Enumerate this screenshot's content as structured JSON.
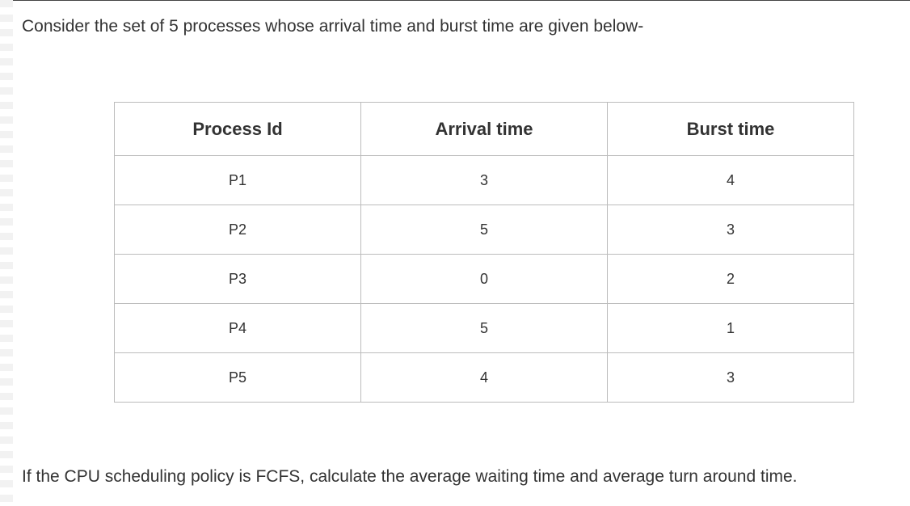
{
  "intro_text": "Consider the set of 5 processes whose arrival time and burst time are given below-",
  "table": {
    "headers": [
      "Process Id",
      "Arrival time",
      "Burst time"
    ],
    "rows": [
      [
        "P1",
        "3",
        "4"
      ],
      [
        "P2",
        "5",
        "3"
      ],
      [
        "P3",
        "0",
        "2"
      ],
      [
        "P4",
        "5",
        "1"
      ],
      [
        "P5",
        "4",
        "3"
      ]
    ]
  },
  "question_text": "If the CPU scheduling policy is FCFS, calculate the average waiting time and average turn around time."
}
